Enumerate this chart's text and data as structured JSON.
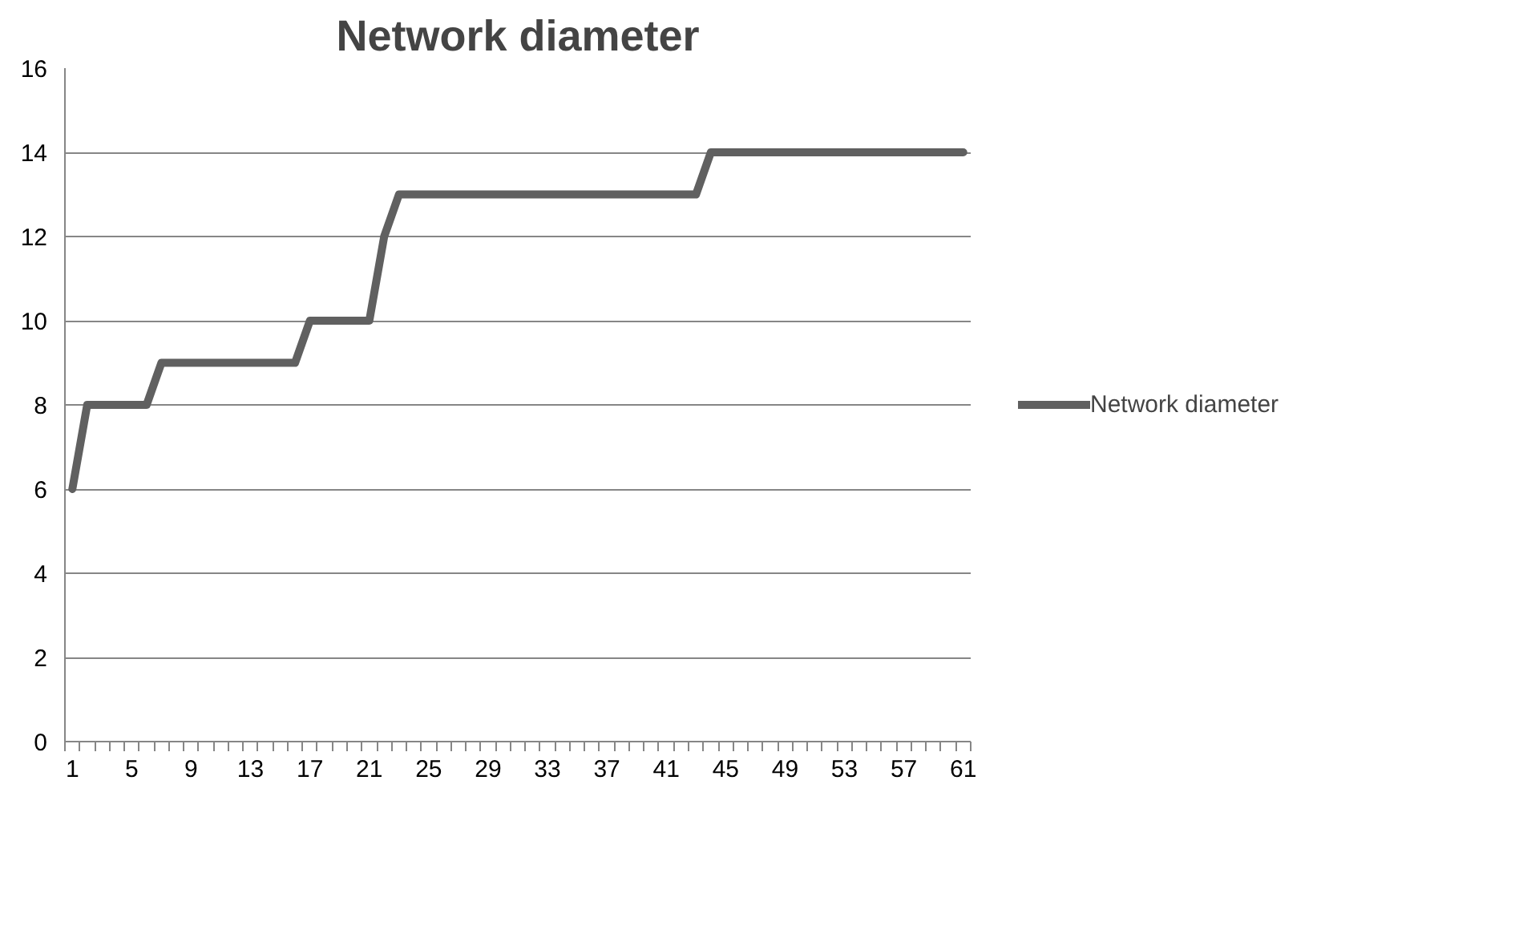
{
  "chart_data": {
    "type": "line",
    "title": "Network diameter",
    "categories": [
      "1",
      null,
      null,
      null,
      "5",
      null,
      null,
      null,
      "9",
      null,
      null,
      null,
      "13",
      null,
      null,
      null,
      "17",
      null,
      null,
      null,
      "21",
      null,
      null,
      null,
      "25",
      null,
      null,
      null,
      "29",
      null,
      null,
      null,
      "33",
      null,
      null,
      null,
      "37",
      null,
      null,
      null,
      "41",
      null,
      null,
      null,
      "45",
      null,
      null,
      null,
      "49",
      null,
      null,
      null,
      "53",
      null,
      null,
      null,
      "57",
      null,
      null,
      null,
      "61"
    ],
    "series": [
      {
        "name": "Network diameter",
        "color": "#606060",
        "values": [
          6,
          8,
          8,
          8,
          8,
          8,
          9,
          9,
          9,
          9,
          9,
          9,
          9,
          9,
          9,
          9,
          10,
          10,
          10,
          10,
          10,
          12,
          13,
          13,
          13,
          13,
          13,
          13,
          13,
          13,
          13,
          13,
          13,
          13,
          13,
          13,
          13,
          13,
          13,
          13,
          13,
          13,
          13,
          14,
          14,
          14,
          14,
          14,
          14,
          14,
          14,
          14,
          14,
          14,
          14,
          14,
          14,
          14,
          14,
          14,
          14
        ]
      }
    ],
    "ylim": [
      0,
      16
    ],
    "yticks": [
      0,
      2,
      4,
      6,
      8,
      10,
      12,
      14,
      16
    ],
    "grid": "y",
    "legend": "right",
    "marker": "none",
    "line_style": "solid"
  }
}
